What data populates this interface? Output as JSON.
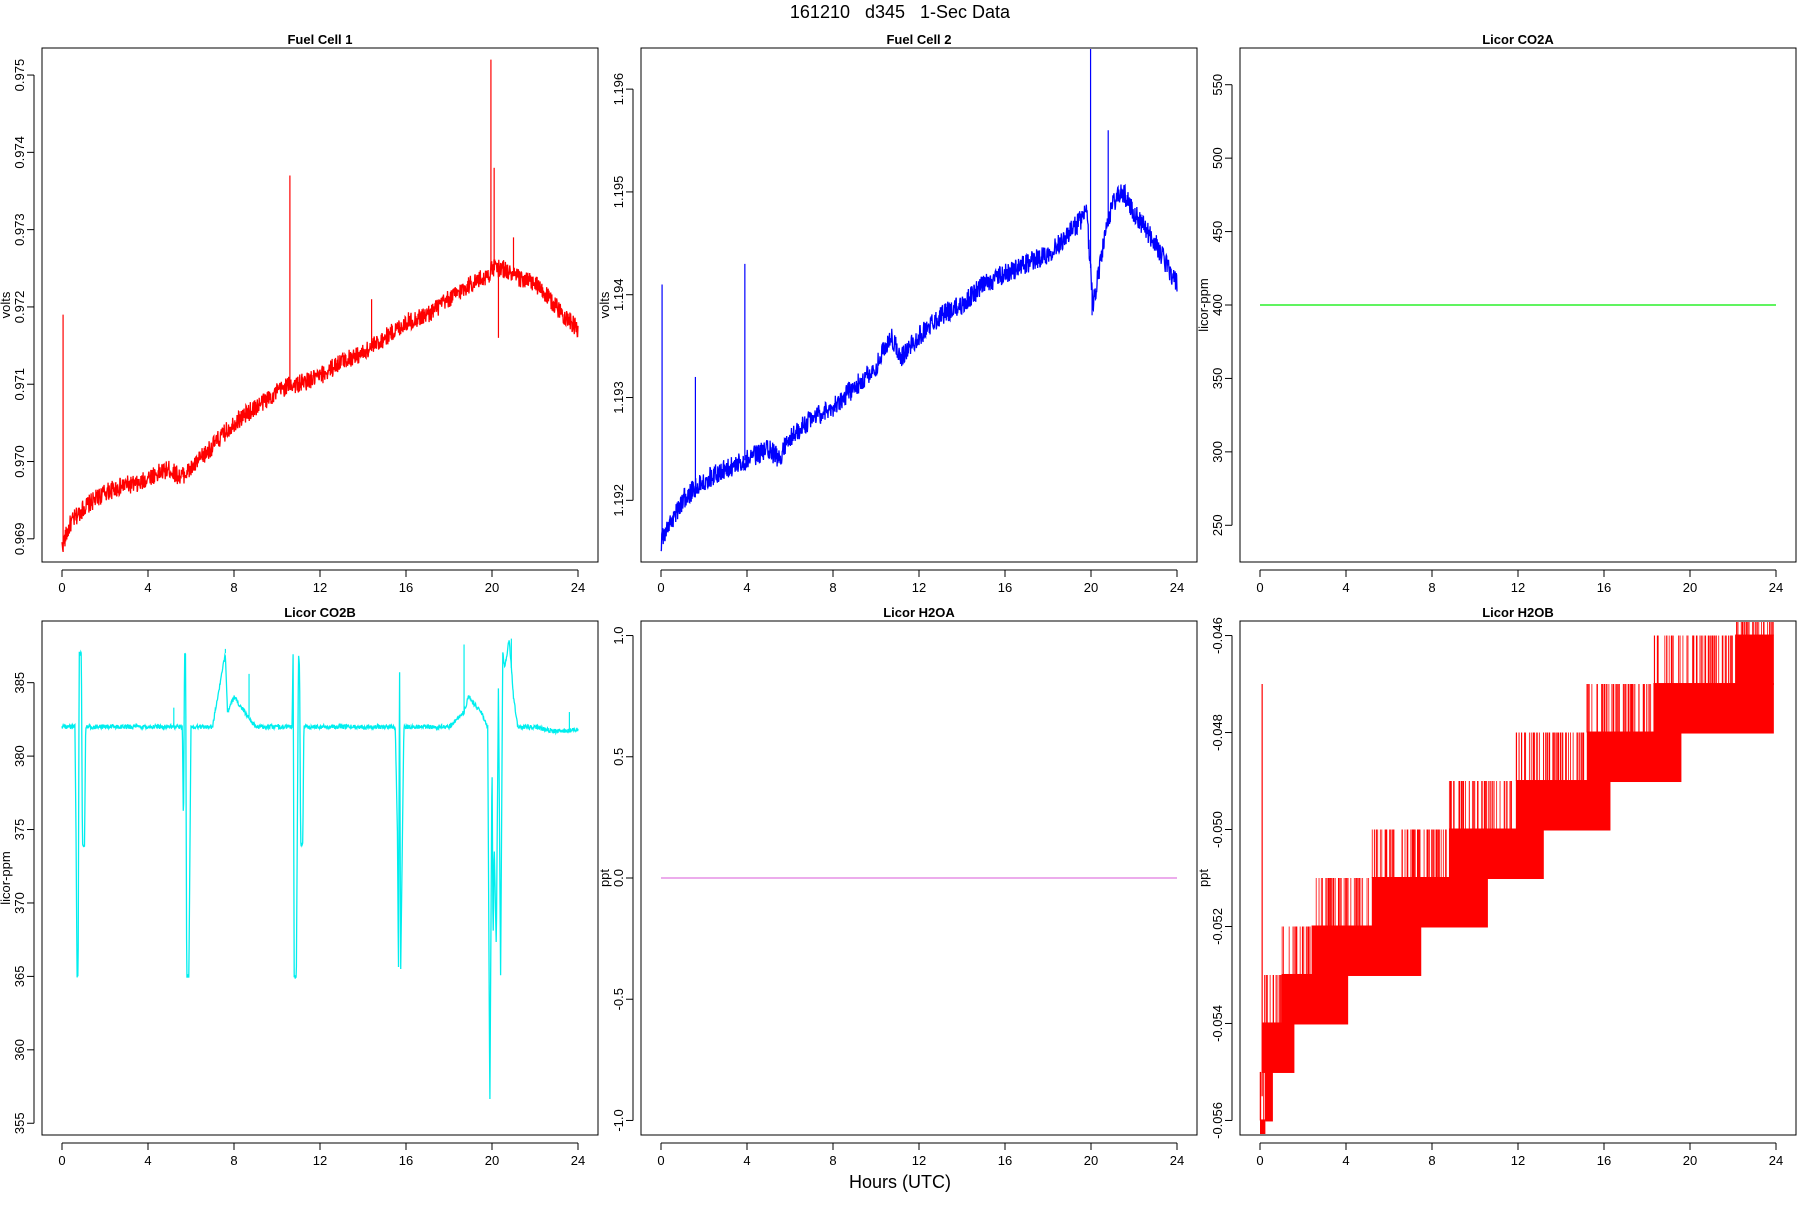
{
  "page": {
    "title": "161210   d345   1-Sec Data",
    "xlabel": "Hours (UTC)"
  },
  "chart_data": [
    {
      "id": "fc1",
      "type": "line",
      "title": "Fuel Cell 1",
      "ylabel": "volts",
      "color": "#ff0000",
      "xlim": [
        0,
        24
      ],
      "ylim": [
        0.9687,
        0.97535
      ],
      "xticks": [
        0,
        4,
        8,
        12,
        16,
        20,
        24
      ],
      "yticks": [
        0.969,
        0.97,
        0.971,
        0.972,
        0.973,
        0.974,
        0.975
      ],
      "ytick_labels": [
        "0.969",
        "0.970",
        "0.971",
        "0.972",
        "0.973",
        "0.974",
        "0.975"
      ],
      "noise": 0.00012,
      "series": [
        {
          "x": [
            0,
            0.4,
            1,
            2,
            3,
            3.6,
            4,
            5,
            5.5,
            6,
            7,
            8,
            9,
            10,
            10.6,
            11,
            12,
            13,
            14,
            15,
            16,
            17,
            18,
            19,
            19.8,
            20,
            20.5,
            21,
            22,
            23,
            24
          ],
          "y": [
            0.9689,
            0.9692,
            0.9694,
            0.9696,
            0.9697,
            0.9697,
            0.9698,
            0.9699,
            0.9698,
            0.9699,
            0.9702,
            0.9705,
            0.9707,
            0.9709,
            0.971,
            0.971,
            0.9711,
            0.9713,
            0.9714,
            0.9716,
            0.9718,
            0.9719,
            0.9721,
            0.9723,
            0.9724,
            0.9725,
            0.9725,
            0.9724,
            0.9723,
            0.972,
            0.9717
          ]
        }
      ],
      "spikes": [
        {
          "x": 0.05,
          "y": 0.9719
        },
        {
          "x": 10.6,
          "y": 0.9737
        },
        {
          "x": 14.4,
          "y": 0.9721
        },
        {
          "x": 19.95,
          "y": 0.9752
        },
        {
          "x": 20.1,
          "y": 0.9738
        },
        {
          "x": 21.0,
          "y": 0.9729
        },
        {
          "x": 20.3,
          "y": 0.9716
        }
      ]
    },
    {
      "id": "fc2",
      "type": "line",
      "title": "Fuel Cell 2",
      "ylabel": "volts",
      "color": "#0000ff",
      "xlim": [
        0,
        24
      ],
      "ylim": [
        1.1914,
        1.1964
      ],
      "xticks": [
        0,
        4,
        8,
        12,
        16,
        20,
        24
      ],
      "yticks": [
        1.192,
        1.193,
        1.194,
        1.195,
        1.196
      ],
      "ytick_labels": [
        "1.192",
        "1.193",
        "1.194",
        "1.195",
        "1.196"
      ],
      "noise": 0.0001,
      "series": [
        {
          "x": [
            0,
            0.5,
            1,
            2,
            3,
            4,
            5,
            5.5,
            6,
            7,
            8,
            9,
            10,
            10.7,
            11.2,
            12,
            13,
            14,
            15,
            16,
            17,
            18,
            19,
            19.8,
            20.1,
            20.5,
            21,
            21.5,
            22,
            23,
            24
          ],
          "y": [
            1.1916,
            1.1918,
            1.192,
            1.1922,
            1.1923,
            1.1924,
            1.1925,
            1.1924,
            1.1926,
            1.1928,
            1.1929,
            1.1931,
            1.1933,
            1.1936,
            1.1934,
            1.1936,
            1.1938,
            1.1939,
            1.1941,
            1.1942,
            1.1943,
            1.1944,
            1.1946,
            1.1948,
            1.1939,
            1.1944,
            1.1949,
            1.195,
            1.1948,
            1.1945,
            1.1941
          ]
        }
      ],
      "spikes": [
        {
          "x": 0.05,
          "y": 1.1941
        },
        {
          "x": 1.6,
          "y": 1.1932
        },
        {
          "x": 3.9,
          "y": 1.1943
        },
        {
          "x": 19.98,
          "y": 1.1964
        },
        {
          "x": 20.8,
          "y": 1.1956
        },
        {
          "x": 20.05,
          "y": 1.1938
        }
      ]
    },
    {
      "id": "co2a",
      "type": "line",
      "title": "Licor CO2A",
      "ylabel": "licor-ppm",
      "color": "#00ee00",
      "xlim": [
        0,
        24
      ],
      "ylim": [
        225,
        575
      ],
      "xticks": [
        0,
        4,
        8,
        12,
        16,
        20,
        24
      ],
      "yticks": [
        250,
        300,
        350,
        400,
        450,
        500,
        550
      ],
      "ytick_labels": [
        "250",
        "300",
        "350",
        "400",
        "450",
        "500",
        "550"
      ],
      "series": [
        {
          "x": [
            0,
            24
          ],
          "y": [
            400,
            400
          ]
        }
      ]
    },
    {
      "id": "co2b",
      "type": "line",
      "title": "Licor CO2B",
      "ylabel": "licor-ppm",
      "color": "#00eeee",
      "xlim": [
        0,
        24
      ],
      "ylim": [
        354.2,
        389.2
      ],
      "xticks": [
        0,
        4,
        8,
        12,
        16,
        20,
        24
      ],
      "yticks": [
        355,
        360,
        365,
        370,
        375,
        380,
        385
      ],
      "ytick_labels": [
        "355",
        "360",
        "365",
        "370",
        "375",
        "380",
        "385"
      ],
      "noise": 0.15,
      "series": [
        {
          "x": [
            0,
            0.6,
            0.65,
            0.7,
            0.75,
            0.8,
            0.9,
            0.95,
            1.05,
            1.1,
            1.15,
            3,
            5,
            5.6,
            5.65,
            5.7,
            5.75,
            5.8,
            5.9,
            6.0,
            7,
            7.6,
            7.7,
            8,
            8.5,
            9,
            10.5,
            10.7,
            10.75,
            10.8,
            10.9,
            11.0,
            11.05,
            11.1,
            11.2,
            11.25,
            13,
            14,
            15.5,
            15.6,
            15.65,
            15.7,
            15.75,
            15.9,
            16.0,
            17,
            18,
            18.7,
            18.9,
            19.5,
            19.8,
            19.9,
            20.0,
            20.05,
            20.1,
            20.2,
            20.3,
            20.4,
            20.5,
            20.6,
            20.8,
            21.0,
            21.2,
            22,
            22.5,
            23,
            24
          ],
          "y": [
            382,
            382,
            375,
            365,
            365,
            387,
            387,
            374,
            374,
            382,
            382,
            382,
            382,
            382,
            375,
            387,
            387,
            365,
            365,
            382,
            382,
            387,
            383,
            384,
            383,
            382,
            382,
            382,
            387,
            365,
            365,
            387,
            386,
            374,
            374,
            382,
            382,
            382,
            382,
            375,
            365,
            387,
            365,
            382,
            382,
            382,
            382,
            383,
            384,
            383,
            382,
            356,
            380,
            367,
            374,
            367,
            385,
            365,
            387,
            386,
            388,
            384,
            382,
            382,
            381.8,
            381.7,
            381.8
          ]
        }
      ],
      "spikes": [
        {
          "x": 5.2,
          "y": 383.3
        },
        {
          "x": 7.6,
          "y": 387.3
        },
        {
          "x": 8.7,
          "y": 385.6
        },
        {
          "x": 18.7,
          "y": 387.6
        },
        {
          "x": 20.9,
          "y": 388.0
        },
        {
          "x": 23.6,
          "y": 383.0
        }
      ]
    },
    {
      "id": "h2oa",
      "type": "line",
      "title": "Licor H2OA",
      "ylabel": "ppt",
      "color": "#e07be0",
      "xlim": [
        0,
        24
      ],
      "ylim": [
        -1.06,
        1.06
      ],
      "xticks": [
        0,
        4,
        8,
        12,
        16,
        20,
        24
      ],
      "yticks": [
        -1.0,
        -0.5,
        0.0,
        0.5,
        1.0
      ],
      "ytick_labels": [
        "-1.0",
        "-0.5",
        "0.0",
        "0.5",
        "1.0"
      ],
      "series": [
        {
          "x": [
            0,
            24
          ],
          "y": [
            0,
            0
          ]
        }
      ]
    },
    {
      "id": "h2ob",
      "type": "line",
      "title": "Licor H2OB",
      "ylabel": "ppt",
      "color": "#ff0000",
      "xlim": [
        0,
        24
      ],
      "ylim": [
        -0.0563,
        -0.0457
      ],
      "xticks": [
        0,
        4,
        8,
        12,
        16,
        20,
        24
      ],
      "yticks": [
        -0.056,
        -0.054,
        -0.052,
        -0.05,
        -0.048,
        -0.046
      ],
      "ytick_labels": [
        "-0.056",
        "-0.054",
        "-0.052",
        "-0.050",
        "-0.048",
        "-0.046"
      ],
      "steps": [
        {
          "x0": 0.0,
          "x1": 0.25,
          "y": -0.056
        },
        {
          "x0": 0.25,
          "x1": 0.6,
          "y": -0.055
        },
        {
          "x0": 0.1,
          "x1": 1.6,
          "y": -0.054
        },
        {
          "x0": 1.0,
          "x1": 4.1,
          "y": -0.053
        },
        {
          "x0": 2.4,
          "x1": 7.5,
          "y": -0.052
        },
        {
          "x0": 5.2,
          "x1": 10.6,
          "y": -0.051
        },
        {
          "x0": 8.8,
          "x1": 13.2,
          "y": -0.05
        },
        {
          "x0": 11.9,
          "x1": 16.3,
          "y": -0.049
        },
        {
          "x0": 15.2,
          "x1": 19.6,
          "y": -0.048
        },
        {
          "x0": 18.3,
          "x1": 23.9,
          "y": -0.047
        },
        {
          "x0": 22.1,
          "x1": 23.9,
          "y": -0.046
        }
      ],
      "spikes": [
        {
          "x": 0.1,
          "y": -0.047
        }
      ]
    }
  ]
}
